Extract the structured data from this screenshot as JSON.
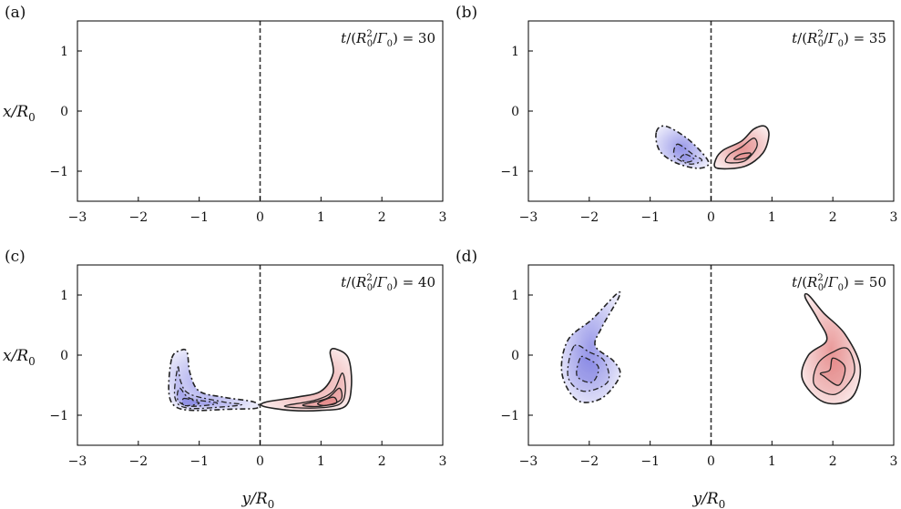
{
  "chart_data": [
    {
      "type": "contour",
      "panel_label": "(a)",
      "time_label": "t/(R₀²/Γ₀) = 30",
      "time_value": 30,
      "xlabel": "",
      "ylabel": "x/R₀",
      "xlim": [
        -3,
        3
      ],
      "ylim": [
        -1.5,
        1.5
      ],
      "xticks": [
        -3,
        -2,
        -1,
        0,
        1,
        2,
        3
      ],
      "yticks": [
        1,
        0,
        -1
      ],
      "centerline_y": 0,
      "negative_lobe": null,
      "positive_lobe": null
    },
    {
      "type": "contour",
      "panel_label": "(b)",
      "time_label": "t/(R₀²/Γ₀) = 35",
      "time_value": 35,
      "xlabel": "",
      "ylabel": "",
      "xlim": [
        -3,
        3
      ],
      "ylim": [
        -1.5,
        1.5
      ],
      "xticks": [
        -3,
        -2,
        -1,
        0,
        1,
        2,
        3
      ],
      "yticks": [
        1,
        0,
        -1
      ],
      "centerline_y": 0,
      "negative_lobe": {
        "outer_contour": [
          [
            -0.9,
            -0.35
          ],
          [
            -0.75,
            -0.25
          ],
          [
            -0.4,
            -0.45
          ],
          [
            -0.1,
            -0.75
          ],
          [
            -0.05,
            -0.9
          ],
          [
            -0.25,
            -0.95
          ],
          [
            -0.6,
            -0.85
          ],
          [
            -0.85,
            -0.65
          ]
        ],
        "inner_contours": [
          [
            [
              -0.55,
              -0.55
            ],
            [
              -0.3,
              -0.72
            ],
            [
              -0.15,
              -0.82
            ],
            [
              -0.35,
              -0.88
            ],
            [
              -0.6,
              -0.75
            ]
          ],
          [
            [
              -0.42,
              -0.72
            ],
            [
              -0.28,
              -0.8
            ],
            [
              -0.4,
              -0.85
            ],
            [
              -0.5,
              -0.78
            ]
          ]
        ]
      },
      "positive_lobe": {
        "outer_contour": [
          [
            0.1,
            -0.95
          ],
          [
            0.55,
            -0.92
          ],
          [
            0.85,
            -0.7
          ],
          [
            0.95,
            -0.4
          ],
          [
            0.88,
            -0.25
          ],
          [
            0.7,
            -0.3
          ],
          [
            0.5,
            -0.5
          ],
          [
            0.2,
            -0.65
          ],
          [
            0.08,
            -0.8
          ]
        ],
        "inner_contours": [
          [
            [
              0.25,
              -0.85
            ],
            [
              0.55,
              -0.83
            ],
            [
              0.75,
              -0.6
            ],
            [
              0.7,
              -0.45
            ],
            [
              0.5,
              -0.6
            ],
            [
              0.3,
              -0.72
            ]
          ],
          [
            [
              0.38,
              -0.8
            ],
            [
              0.58,
              -0.78
            ],
            [
              0.65,
              -0.7
            ],
            [
              0.48,
              -0.72
            ]
          ]
        ]
      }
    },
    {
      "type": "contour",
      "panel_label": "(c)",
      "time_label": "t/(R₀²/Γ₀) = 40",
      "time_value": 40,
      "xlabel": "",
      "ylabel": "x/R₀",
      "xlim": [
        -3,
        3
      ],
      "ylim": [
        -1.5,
        1.5
      ],
      "xticks": [
        -3,
        -2,
        -1,
        0,
        1,
        2,
        3
      ],
      "yticks": [
        1,
        0,
        -1
      ],
      "centerline_y": 0,
      "negative_lobe": {
        "outer_contour": [
          [
            -1.45,
            -0.05
          ],
          [
            -1.3,
            0.08
          ],
          [
            -1.2,
            0.05
          ],
          [
            -1.15,
            -0.3
          ],
          [
            -1.0,
            -0.6
          ],
          [
            -0.6,
            -0.7
          ],
          [
            -0.1,
            -0.78
          ],
          [
            -0.05,
            -0.88
          ],
          [
            -0.5,
            -0.9
          ],
          [
            -1.1,
            -0.92
          ],
          [
            -1.4,
            -0.85
          ],
          [
            -1.5,
            -0.6
          ]
        ],
        "inner_contours": [
          [
            [
              -1.35,
              -0.2
            ],
            [
              -1.3,
              -0.45
            ],
            [
              -1.15,
              -0.65
            ],
            [
              -0.6,
              -0.78
            ],
            [
              -0.3,
              -0.82
            ],
            [
              -0.6,
              -0.86
            ],
            [
              -1.2,
              -0.88
            ],
            [
              -1.4,
              -0.7
            ]
          ],
          [
            [
              -1.32,
              -0.55
            ],
            [
              -1.15,
              -0.72
            ],
            [
              -0.7,
              -0.8
            ],
            [
              -1.15,
              -0.85
            ],
            [
              -1.35,
              -0.75
            ]
          ],
          [
            [
              -1.25,
              -0.72
            ],
            [
              -1.0,
              -0.8
            ],
            [
              -1.25,
              -0.84
            ]
          ]
        ]
      },
      "positive_lobe": {
        "outer_contour": [
          [
            0.05,
            -0.85
          ],
          [
            0.1,
            -0.78
          ],
          [
            0.6,
            -0.7
          ],
          [
            1.0,
            -0.6
          ],
          [
            1.2,
            -0.3
          ],
          [
            1.15,
            0.05
          ],
          [
            1.25,
            0.1
          ],
          [
            1.45,
            -0.05
          ],
          [
            1.5,
            -0.5
          ],
          [
            1.4,
            -0.85
          ],
          [
            1.0,
            -0.92
          ],
          [
            0.5,
            -0.92
          ]
        ],
        "inner_contours": [
          [
            [
              0.4,
              -0.85
            ],
            [
              0.9,
              -0.75
            ],
            [
              1.2,
              -0.6
            ],
            [
              1.35,
              -0.3
            ],
            [
              1.4,
              -0.6
            ],
            [
              1.3,
              -0.82
            ],
            [
              0.9,
              -0.88
            ]
          ],
          [
            [
              0.7,
              -0.83
            ],
            [
              1.1,
              -0.72
            ],
            [
              1.3,
              -0.55
            ],
            [
              1.32,
              -0.75
            ],
            [
              1.0,
              -0.85
            ]
          ],
          [
            [
              0.95,
              -0.8
            ],
            [
              1.2,
              -0.7
            ],
            [
              1.25,
              -0.8
            ],
            [
              1.05,
              -0.84
            ]
          ]
        ]
      }
    },
    {
      "type": "contour",
      "panel_label": "(d)",
      "time_label": "t/(R₀²/Γ₀) = 50",
      "time_value": 50,
      "xlabel": "",
      "ylabel": "",
      "xlim": [
        -3,
        3
      ],
      "ylim": [
        -1.5,
        1.5
      ],
      "xticks": [
        -3,
        -2,
        -1,
        0,
        1,
        2,
        3
      ],
      "yticks": [
        1,
        0,
        -1
      ],
      "centerline_y": 0,
      "negative_lobe": {
        "outer_contour": [
          [
            -1.55,
            1.02
          ],
          [
            -1.95,
            0.6
          ],
          [
            -2.35,
            0.25
          ],
          [
            -2.45,
            -0.3
          ],
          [
            -2.2,
            -0.75
          ],
          [
            -1.8,
            -0.72
          ],
          [
            -1.5,
            -0.35
          ],
          [
            -1.6,
            -0.1
          ],
          [
            -1.9,
            0.15
          ],
          [
            -1.8,
            0.45
          ],
          [
            -1.52,
            0.95
          ]
        ],
        "inner_contours": [
          [
            [
              -2.25,
              0.15
            ],
            [
              -2.35,
              -0.35
            ],
            [
              -2.1,
              -0.6
            ],
            [
              -1.7,
              -0.45
            ],
            [
              -1.75,
              -0.1
            ],
            [
              -2.0,
              0.05
            ]
          ],
          [
            [
              -2.15,
              -0.05
            ],
            [
              -2.2,
              -0.35
            ],
            [
              -1.95,
              -0.45
            ],
            [
              -1.85,
              -0.2
            ],
            [
              -2.05,
              -0.05
            ]
          ]
        ]
      },
      "positive_lobe": {
        "outer_contour": [
          [
            1.6,
            1.0
          ],
          [
            1.85,
            0.7
          ],
          [
            2.2,
            0.35
          ],
          [
            2.45,
            -0.2
          ],
          [
            2.3,
            -0.72
          ],
          [
            1.85,
            -0.78
          ],
          [
            1.5,
            -0.4
          ],
          [
            1.6,
            0.0
          ],
          [
            1.9,
            0.25
          ],
          [
            1.75,
            0.6
          ],
          [
            1.55,
            0.95
          ]
        ],
        "inner_contours": [
          [
            [
              1.7,
              -0.5
            ],
            [
              2.05,
              -0.65
            ],
            [
              2.35,
              -0.3
            ],
            [
              2.25,
              0.1
            ],
            [
              2.0,
              0.05
            ],
            [
              1.75,
              -0.15
            ]
          ],
          [
            [
              1.85,
              -0.35
            ],
            [
              2.1,
              -0.5
            ],
            [
              2.2,
              -0.2
            ],
            [
              2.0,
              -0.05
            ],
            [
              1.95,
              -0.25
            ],
            [
              1.8,
              -0.3
            ]
          ]
        ]
      }
    }
  ],
  "colors": {
    "negative_fill": "#4a4ad8",
    "positive_fill": "#d84a4a",
    "contour_line": "#222222",
    "centerline": "#333333"
  }
}
